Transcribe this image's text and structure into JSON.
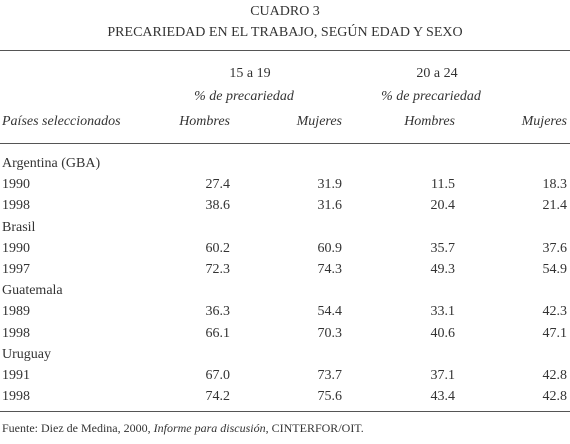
{
  "header": {
    "title": "CUADRO 3",
    "subtitle": "PRECARIEDAD EN EL TRABAJO, SEGÚN EDAD Y SEXO"
  },
  "table": {
    "groups": [
      {
        "label": "15 a 19",
        "sublabel": "% de precariedad"
      },
      {
        "label": "20 a 24",
        "sublabel": "% de precariedad"
      }
    ],
    "columns": [
      "Países seleccionados",
      "Hombres",
      "Mujeres",
      "Hombres",
      "Mujeres"
    ],
    "sections": [
      {
        "country": "Argentina (GBA)",
        "rows": [
          [
            "1990",
            "27.4",
            "31.9",
            "11.5",
            "18.3"
          ],
          [
            "1998",
            "38.6",
            "31.6",
            "20.4",
            "21.4"
          ]
        ]
      },
      {
        "country": "Brasil",
        "rows": [
          [
            "1990",
            "60.2",
            "60.9",
            "35.7",
            "37.6"
          ],
          [
            "1997",
            "72.3",
            "74.3",
            "49.3",
            "54.9"
          ]
        ]
      },
      {
        "country": "Guatemala",
        "rows": [
          [
            "1989",
            "36.3",
            "54.4",
            "33.1",
            "42.3"
          ],
          [
            "1998",
            "66.1",
            "70.3",
            "40.6",
            "47.1"
          ]
        ]
      },
      {
        "country": "Uruguay",
        "rows": [
          [
            "1991",
            "67.0",
            "73.7",
            "37.1",
            "42.8"
          ],
          [
            "1998",
            "74.2",
            "75.6",
            "43.4",
            "42.8"
          ]
        ]
      }
    ]
  },
  "footnote": {
    "prefix": "Fuente: Diez de Medina, 2000, ",
    "italic": "Informe para discusión",
    "suffix": ", CINTERFOR/OIT."
  }
}
